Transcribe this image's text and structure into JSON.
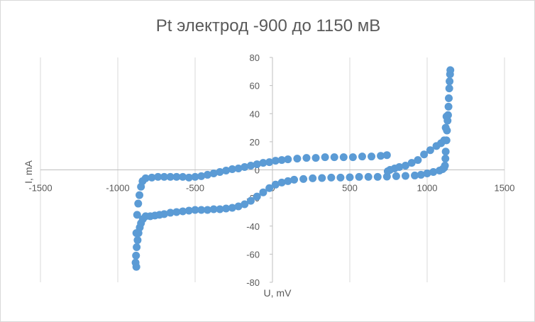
{
  "chart_data": {
    "type": "scatter",
    "title": "Pt  электрод  -900 до 1150 мВ",
    "xlabel": "U, mV",
    "ylabel": "I, mA",
    "xlim": [
      -1500,
      1500
    ],
    "ylim": [
      -80,
      80
    ],
    "xticks": [
      -1500,
      -1000,
      -500,
      0,
      500,
      1000,
      1500
    ],
    "yticks": [
      -80,
      -60,
      -40,
      -20,
      0,
      20,
      40,
      60,
      80
    ],
    "grid": "vertical",
    "marker_color": "#5b9bd5",
    "series": [
      {
        "values": [
          [
            -880,
            -69
          ],
          [
            -885,
            -66
          ],
          [
            -882,
            -61
          ],
          [
            -878,
            -55
          ],
          [
            -872,
            -50
          ],
          [
            -866,
            -45
          ],
          [
            -858,
            -41
          ],
          [
            -850,
            -38
          ],
          [
            -838,
            -35
          ],
          [
            -820,
            -33
          ],
          [
            -790,
            -33
          ],
          [
            -760,
            -32.5
          ],
          [
            -730,
            -32
          ],
          [
            -700,
            -31.5
          ],
          [
            -660,
            -30.5
          ],
          [
            -620,
            -30
          ],
          [
            -580,
            -29.5
          ],
          [
            -540,
            -29
          ],
          [
            -500,
            -28.5
          ],
          [
            -460,
            -28.5
          ],
          [
            -420,
            -28.5
          ],
          [
            -380,
            -28
          ],
          [
            -340,
            -28
          ],
          [
            -300,
            -27.5
          ],
          [
            -260,
            -27
          ],
          [
            -220,
            -26
          ],
          [
            -180,
            -24.5
          ],
          [
            -140,
            -22
          ],
          [
            -100,
            -19
          ],
          [
            -60,
            -16
          ],
          [
            -20,
            -13
          ],
          [
            20,
            -10.5
          ],
          [
            60,
            -9
          ],
          [
            100,
            -8
          ],
          [
            140,
            -7
          ],
          [
            200,
            -6.5
          ],
          [
            260,
            -6
          ],
          [
            320,
            -5.8
          ],
          [
            380,
            -5.5
          ],
          [
            440,
            -5.5
          ],
          [
            500,
            -5.3
          ],
          [
            560,
            -5
          ],
          [
            620,
            -5
          ],
          [
            680,
            -5
          ],
          [
            740,
            -4.8
          ],
          [
            800,
            -4.5
          ],
          [
            860,
            -4.3
          ],
          [
            920,
            -4
          ],
          [
            960,
            -3.5
          ],
          [
            1000,
            -2.5
          ],
          [
            1040,
            -1.5
          ],
          [
            1080,
            -0.5
          ],
          [
            1100,
            0.5
          ],
          [
            1110,
            1.5
          ],
          [
            1115,
            3
          ],
          [
            1118,
            8
          ],
          [
            1120,
            13
          ],
          [
            1125,
            21
          ],
          [
            1128,
            28
          ],
          [
            1132,
            35
          ],
          [
            1135,
            39
          ],
          [
            1138,
            45
          ],
          [
            1140,
            51
          ],
          [
            1143,
            58
          ],
          [
            1145,
            63
          ],
          [
            1148,
            68
          ],
          [
            1150,
            71
          ]
        ]
      },
      {
        "values": [
          [
            -880,
            -45
          ],
          [
            -875,
            -32
          ],
          [
            -868,
            -24
          ],
          [
            -860,
            -18
          ],
          [
            -850,
            -12
          ],
          [
            -840,
            -8
          ],
          [
            -820,
            -6
          ],
          [
            -780,
            -5.5
          ],
          [
            -740,
            -5
          ],
          [
            -700,
            -5
          ],
          [
            -660,
            -5
          ],
          [
            -620,
            -5
          ],
          [
            -580,
            -5
          ],
          [
            -540,
            -5.5
          ],
          [
            -500,
            -5
          ],
          [
            -460,
            -4.5
          ],
          [
            -420,
            -3.5
          ],
          [
            -380,
            -2.5
          ],
          [
            -340,
            -1.5
          ],
          [
            -300,
            -0.5
          ],
          [
            -260,
            0.5
          ],
          [
            -220,
            1
          ],
          [
            -180,
            2
          ],
          [
            -140,
            3
          ],
          [
            -100,
            4
          ],
          [
            -60,
            5
          ],
          [
            -20,
            5.5
          ],
          [
            20,
            6.5
          ],
          [
            60,
            7
          ],
          [
            100,
            7.5
          ],
          [
            160,
            8
          ],
          [
            220,
            8.5
          ],
          [
            280,
            8.5
          ],
          [
            340,
            9
          ],
          [
            400,
            9
          ],
          [
            460,
            9
          ],
          [
            520,
            9
          ],
          [
            580,
            9.5
          ],
          [
            640,
            9.5
          ],
          [
            700,
            10
          ],
          [
            740,
            10.5
          ],
          [
            745,
            -1
          ],
          [
            760,
            0
          ],
          [
            790,
            1
          ],
          [
            820,
            2
          ],
          [
            860,
            3
          ],
          [
            900,
            5
          ],
          [
            940,
            7
          ],
          [
            980,
            11
          ],
          [
            1020,
            14
          ],
          [
            1060,
            17
          ],
          [
            1090,
            19
          ],
          [
            1110,
            21
          ],
          [
            1120,
            30
          ],
          [
            1125,
            38
          ]
        ]
      }
    ]
  }
}
